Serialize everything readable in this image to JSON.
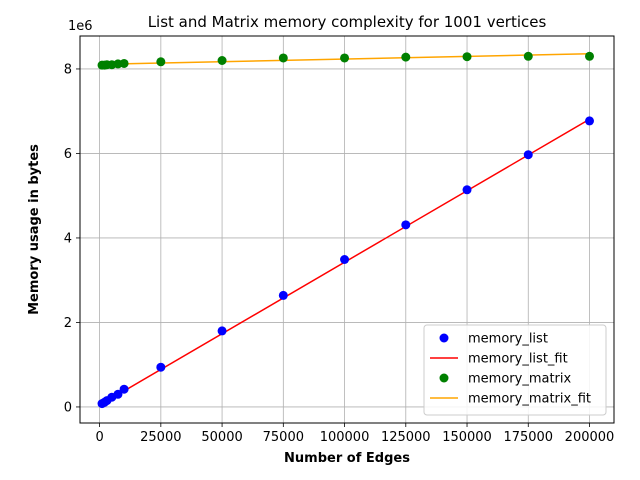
{
  "chart_data": {
    "type": "scatter",
    "title": "List and Matrix memory complexity for 1001 vertices",
    "xlabel": "Number of Edges",
    "ylabel": "Memory usage in bytes",
    "y_offset_label": "1e6",
    "xlim": [
      -8000,
      210000
    ],
    "ylim": [
      -380000,
      8780000
    ],
    "y_scale_factor": 1000000,
    "x_ticks": [
      0,
      25000,
      50000,
      75000,
      100000,
      125000,
      150000,
      175000,
      200000
    ],
    "x_tick_labels": [
      "0",
      "25000",
      "50000",
      "75000",
      "100000",
      "125000",
      "150000",
      "175000",
      "200000"
    ],
    "y_ticks": [
      0,
      2000000,
      4000000,
      6000000,
      8000000
    ],
    "y_tick_labels": [
      "0",
      "2",
      "4",
      "6",
      "8"
    ],
    "grid": true,
    "legend_position": "lower-right",
    "series": [
      {
        "name": "memory_list",
        "kind": "scatter",
        "color": "#0000ff",
        "x": [
          1000,
          2000,
          3000,
          5000,
          7500,
          10000,
          25000,
          50000,
          75000,
          100000,
          125000,
          150000,
          175000,
          200000
        ],
        "y": [
          80000,
          110000,
          150000,
          230000,
          300000,
          420000,
          940000,
          1800000,
          2640000,
          3490000,
          4310000,
          5140000,
          5970000,
          6770000
        ]
      },
      {
        "name": "memory_list_fit",
        "kind": "line",
        "color": "#ff0000",
        "x": [
          1000,
          200000
        ],
        "y": [
          75000,
          6810000
        ]
      },
      {
        "name": "memory_matrix",
        "kind": "scatter",
        "color": "#008000",
        "x": [
          1000,
          2000,
          3000,
          5000,
          7500,
          10000,
          25000,
          50000,
          75000,
          100000,
          125000,
          150000,
          175000,
          200000
        ],
        "y": [
          8090000,
          8090000,
          8100000,
          8100000,
          8120000,
          8130000,
          8170000,
          8200000,
          8260000,
          8260000,
          8280000,
          8290000,
          8300000,
          8300000
        ]
      },
      {
        "name": "memory_matrix_fit",
        "kind": "line",
        "color": "#ffa500",
        "x": [
          1000,
          200000
        ],
        "y": [
          8110000,
          8360000
        ]
      }
    ]
  }
}
